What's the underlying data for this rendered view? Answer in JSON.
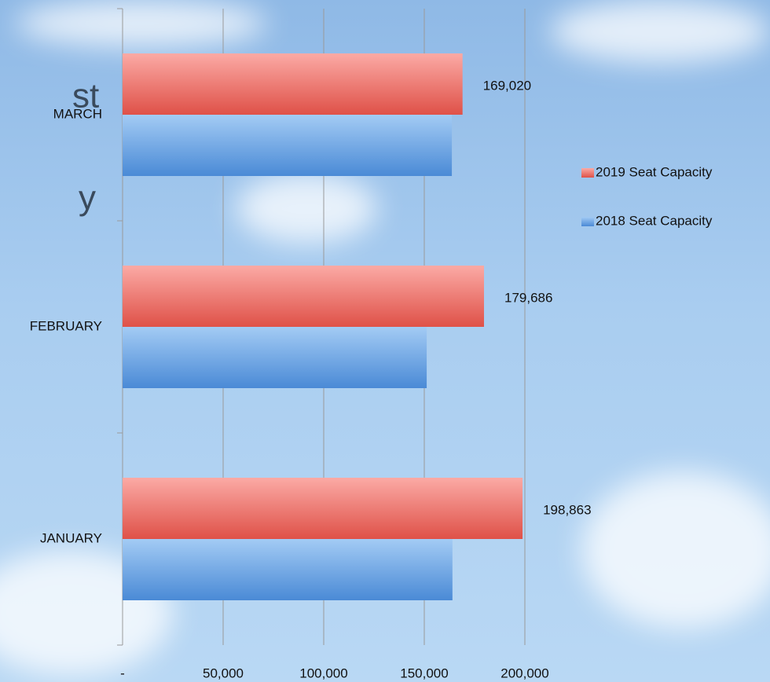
{
  "chart_data": {
    "type": "hbar",
    "categories": [
      "JANUARY",
      "FEBRUARY",
      "MARCH"
    ],
    "series": [
      {
        "name": "2019 Seat Capacity",
        "color": "#e8625a",
        "values": [
          198863,
          179686,
          169020
        ],
        "value_labels": [
          "198,863",
          "179,686",
          "169,020"
        ]
      },
      {
        "name": "2018 Seat Capacity",
        "color": "#5b9be0",
        "values": [
          164000,
          151200,
          163700
        ]
      }
    ],
    "xlim": [
      0,
      200000
    ],
    "xticks": [
      {
        "value": 0,
        "label": "-"
      },
      {
        "value": 50000,
        "label": "50,000"
      },
      {
        "value": 100000,
        "label": "100,000"
      },
      {
        "value": 150000,
        "label": "150,000"
      },
      {
        "value": 200000,
        "label": "200,000"
      }
    ],
    "grid": true,
    "legend": "right"
  },
  "background_text": [
    "st",
    "y"
  ]
}
